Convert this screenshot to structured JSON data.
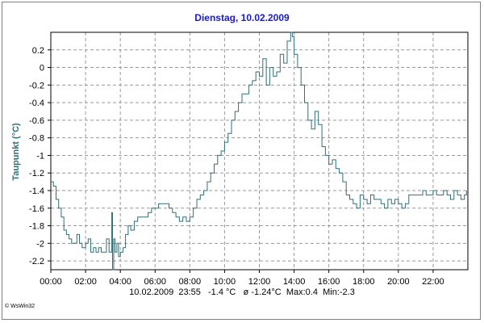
{
  "window": {
    "credit": "© WsWin32"
  },
  "chart_data": {
    "type": "line",
    "title": "Dienstag, 10.02.2009",
    "xlabel": "",
    "ylabel": "Taupunkt (°C)",
    "footer": "10.02.2009  23:55   -1.4 °C   ø -1.24°C  Max:0.4  Min:-2.3",
    "xlim": [
      0,
      24
    ],
    "ylim": [
      -2.3,
      0.4
    ],
    "x_ticks": [
      "00:00",
      "02:00",
      "04:00",
      "06:00",
      "08:00",
      "10:00",
      "12:00",
      "14:00",
      "16:00",
      "18:00",
      "20:00",
      "22:00"
    ],
    "x_tick_values": [
      0,
      2,
      4,
      6,
      8,
      10,
      12,
      14,
      16,
      18,
      20,
      22
    ],
    "y_ticks": [
      "0.2",
      "0",
      "-0.2",
      "-0.4",
      "-0.6",
      "-0.8",
      "-1",
      "-1.2",
      "-1.4",
      "-1.6",
      "-1.8",
      "-2",
      "-2.2"
    ],
    "y_tick_values": [
      0.2,
      0,
      -0.2,
      -0.4,
      -0.6,
      -0.8,
      -1,
      -1.2,
      -1.4,
      -1.6,
      -1.8,
      -2,
      -2.2
    ],
    "grid": true,
    "line_color": "#2f6f78",
    "series": [
      {
        "x": [
          0,
          0.15,
          0.3,
          0.45,
          0.6,
          0.75,
          0.9,
          1.05,
          1.2,
          1.35,
          1.5,
          1.65,
          1.8,
          2.0,
          2.15,
          2.3,
          2.45,
          2.6,
          2.75,
          2.9,
          3.05,
          3.2,
          3.35,
          3.5,
          3.55,
          3.62,
          3.7,
          3.8,
          3.9,
          4.0,
          4.15,
          4.3,
          4.45,
          4.6,
          4.8,
          5.0,
          5.2,
          5.4,
          5.6,
          5.8,
          6.0,
          6.2,
          6.4,
          6.6,
          6.8,
          7.0,
          7.2,
          7.4,
          7.6,
          7.8,
          8.0,
          8.2,
          8.4,
          8.6,
          8.8,
          9.0,
          9.2,
          9.4,
          9.6,
          9.8,
          10.0,
          10.2,
          10.4,
          10.6,
          10.8,
          11.0,
          11.2,
          11.4,
          11.6,
          11.8,
          12.0,
          12.2,
          12.4,
          12.6,
          12.8,
          13.0,
          13.2,
          13.4,
          13.6,
          13.8,
          13.9,
          14.0,
          14.2,
          14.4,
          14.6,
          14.8,
          15.0,
          15.2,
          15.4,
          15.6,
          15.8,
          16.0,
          16.2,
          16.4,
          16.6,
          16.8,
          17.0,
          17.2,
          17.4,
          17.6,
          17.8,
          18.0,
          18.2,
          18.4,
          18.6,
          18.8,
          19.0,
          19.2,
          19.4,
          19.6,
          19.8,
          20.0,
          20.2,
          20.4,
          20.6,
          20.8,
          21.0,
          21.2,
          21.4,
          21.6,
          21.8,
          22.0,
          22.2,
          22.4,
          22.6,
          22.8,
          23.0,
          23.2,
          23.4,
          23.6,
          23.8,
          23.92
        ],
        "values": [
          -1.3,
          -1.35,
          -1.5,
          -1.6,
          -1.7,
          -1.85,
          -1.9,
          -1.95,
          -2.0,
          -2.0,
          -1.9,
          -2.0,
          -2.05,
          -2.0,
          -1.95,
          -2.1,
          -2.05,
          -2.1,
          -2.05,
          -2.1,
          -2.1,
          -1.95,
          -2.1,
          -1.65,
          -2.3,
          -1.95,
          -2.1,
          -2.0,
          -2.15,
          -2.1,
          -2.05,
          -1.9,
          -1.8,
          -1.85,
          -1.75,
          -1.7,
          -1.7,
          -1.7,
          -1.65,
          -1.6,
          -1.6,
          -1.55,
          -1.55,
          -1.55,
          -1.6,
          -1.65,
          -1.7,
          -1.75,
          -1.7,
          -1.75,
          -1.7,
          -1.6,
          -1.5,
          -1.45,
          -1.4,
          -1.3,
          -1.2,
          -1.1,
          -1.0,
          -0.95,
          -0.85,
          -0.75,
          -0.6,
          -0.5,
          -0.4,
          -0.3,
          -0.3,
          -0.2,
          -0.15,
          -0.05,
          -0.1,
          0.1,
          -0.2,
          0.0,
          -0.1,
          -0.05,
          0.15,
          0.05,
          0.3,
          0.4,
          0.35,
          0.15,
          0.0,
          -0.2,
          -0.4,
          -0.6,
          -0.7,
          -0.5,
          -0.65,
          -0.9,
          -1.0,
          -1.1,
          -1.05,
          -1.15,
          -1.2,
          -1.3,
          -1.45,
          -1.5,
          -1.55,
          -1.6,
          -1.45,
          -1.5,
          -1.55,
          -1.45,
          -1.5,
          -1.5,
          -1.55,
          -1.6,
          -1.5,
          -1.55,
          -1.5,
          -1.55,
          -1.6,
          -1.55,
          -1.45,
          -1.45,
          -1.45,
          -1.45,
          -1.4,
          -1.45,
          -1.45,
          -1.4,
          -1.45,
          -1.45,
          -1.4,
          -1.45,
          -1.5,
          -1.4,
          -1.45,
          -1.5,
          -1.45,
          -1.4
        ]
      }
    ]
  }
}
